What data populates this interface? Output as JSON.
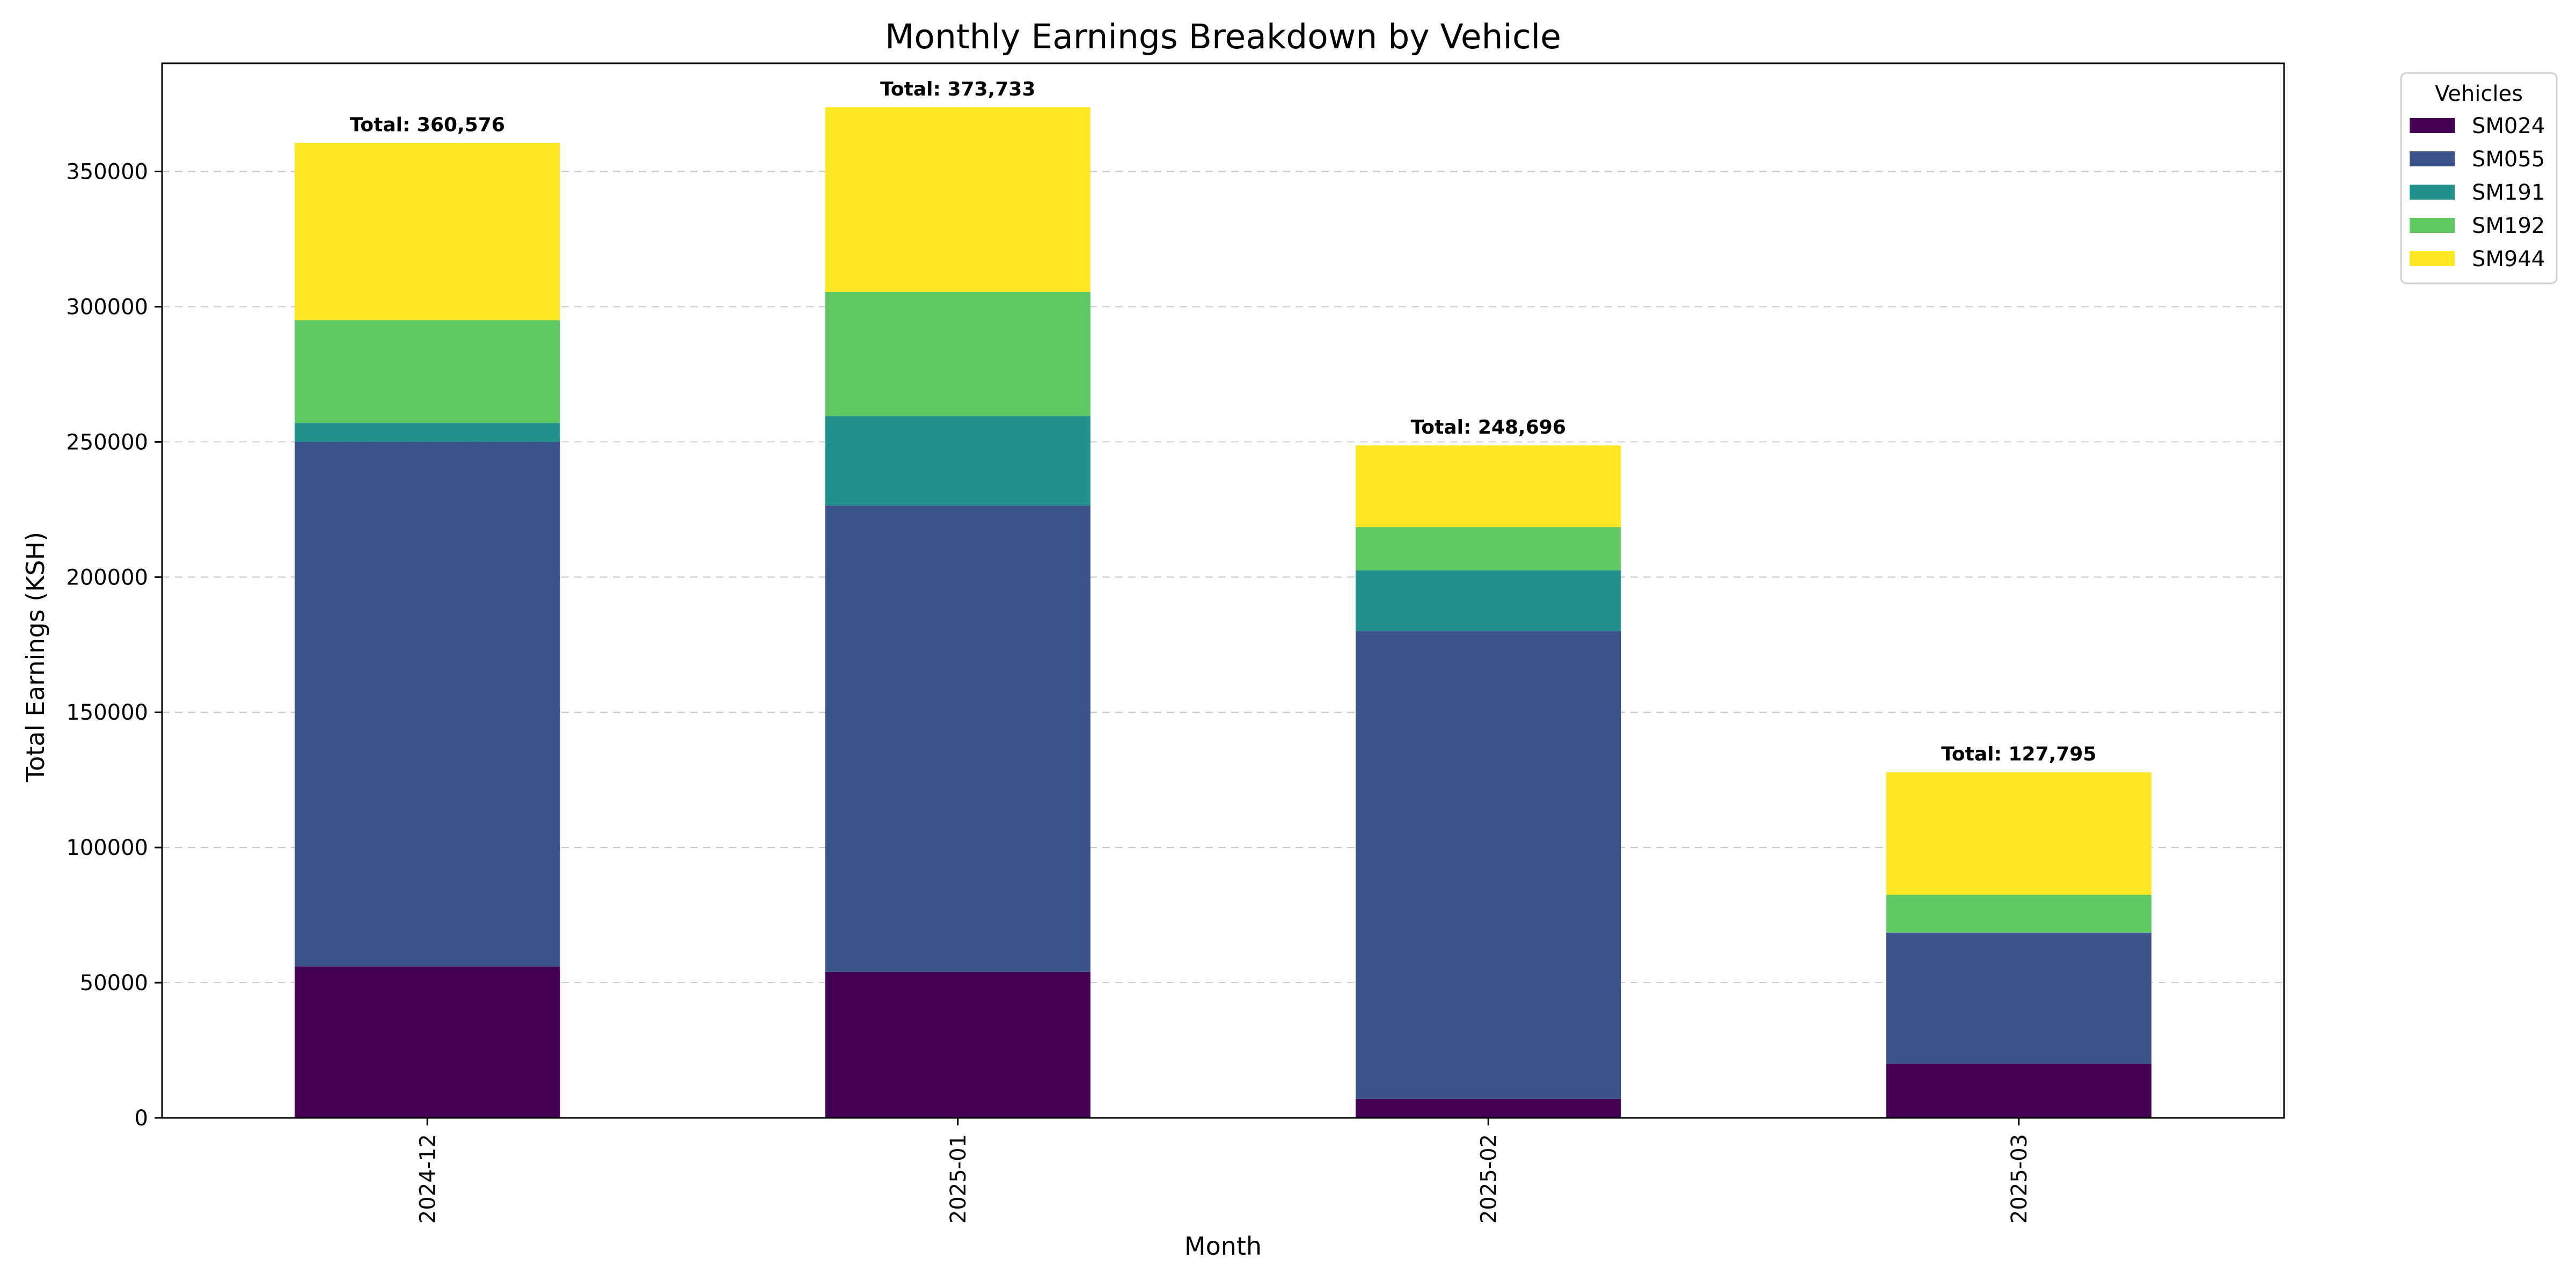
{
  "chart_data": {
    "type": "bar",
    "stacked": true,
    "title": "Monthly Earnings Breakdown by Vehicle",
    "xlabel": "Month",
    "ylabel": "Total Earnings (KSH)",
    "ylim": [
      0,
      390000
    ],
    "yticks": [
      0,
      50000,
      100000,
      150000,
      200000,
      250000,
      300000,
      350000
    ],
    "ytick_labels": [
      "0",
      "50000",
      "100000",
      "150000",
      "200000",
      "250000",
      "300000",
      "350000"
    ],
    "grid": "y-dashed",
    "categories": [
      "2024-12",
      "2025-01",
      "2025-02",
      "2025-03"
    ],
    "series": [
      {
        "name": "SM024",
        "color": "#440154",
        "values": [
          56000,
          54000,
          7000,
          20000
        ]
      },
      {
        "name": "SM055",
        "color": "#3b528b",
        "values": [
          194000,
          172500,
          173000,
          48500
        ]
      },
      {
        "name": "SM191",
        "color": "#21918c",
        "values": [
          7000,
          33000,
          22500,
          0
        ]
      },
      {
        "name": "SM192",
        "color": "#5ec962",
        "values": [
          38000,
          46000,
          16000,
          14000
        ]
      },
      {
        "name": "SM944",
        "color": "#fde725",
        "values": [
          65576,
          68233,
          30196,
          45295
        ]
      }
    ],
    "totals": [
      "Total: 360,576",
      "Total: 373,733",
      "Total: 248,696",
      "Total: 127,795"
    ],
    "total_values": [
      360576,
      373733,
      248696,
      127795
    ],
    "legend": {
      "title": "Vehicles",
      "placement": "outside top-right"
    }
  }
}
